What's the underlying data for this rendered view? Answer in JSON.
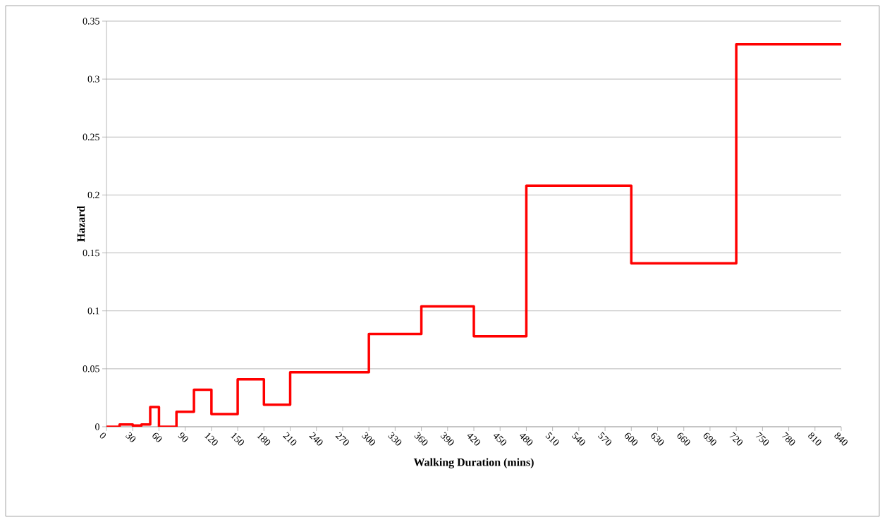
{
  "chart_data": {
    "type": "step",
    "xlabel": "Walking Duration (mins)",
    "ylabel": "Hazard",
    "x": [
      0,
      15,
      30,
      40,
      50,
      60,
      80,
      100,
      120,
      150,
      180,
      210,
      300,
      360,
      420,
      480,
      600,
      720,
      840
    ],
    "values": [
      0,
      0.002,
      0.001,
      0.002,
      0.017,
      0,
      0.013,
      0.032,
      0.011,
      0.041,
      0.019,
      0.047,
      0.08,
      0.104,
      0.078,
      0.208,
      0.141,
      0.33,
      0.33
    ],
    "color": "#ff0000",
    "xlim": [
      0,
      840
    ],
    "ylim": [
      0,
      0.35
    ],
    "xticks": [
      0,
      30,
      60,
      90,
      120,
      150,
      180,
      210,
      240,
      270,
      300,
      330,
      360,
      390,
      420,
      450,
      480,
      510,
      540,
      570,
      600,
      630,
      660,
      690,
      720,
      750,
      780,
      810,
      840
    ],
    "yticks": [
      0,
      0.05,
      0.1,
      0.15,
      0.2,
      0.25,
      0.3,
      0.35
    ],
    "grid": "y"
  }
}
